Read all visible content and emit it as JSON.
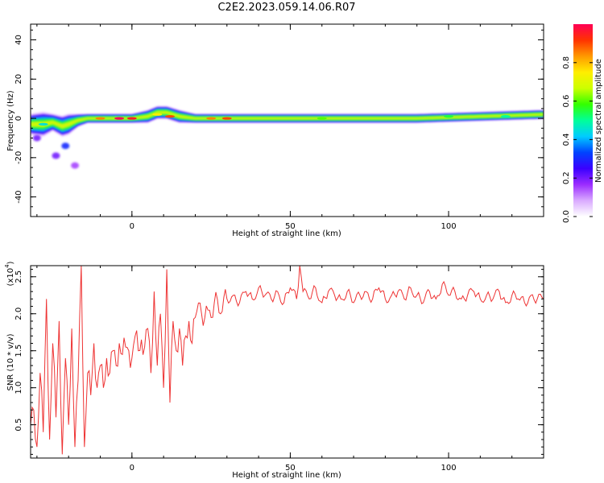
{
  "page": {
    "title": "C2E2.2023.059.14.06.R07"
  },
  "colors": {
    "snr_line": "#ee3333",
    "frame": "#000000",
    "background": "#ffffff"
  },
  "colorbar": {
    "label": "Normalized spectral amplitude",
    "ticks": [
      "0.0",
      "0.2",
      "0.4",
      "0.6",
      "0.8"
    ],
    "range": [
      0,
      1
    ],
    "colormap": [
      "#ffffff",
      "#d9aaff",
      "#9b2cff",
      "#3a00ff",
      "#0044ff",
      "#00ccff",
      "#00ff99",
      "#33ff00",
      "#ccff00",
      "#ffee00",
      "#ff9900",
      "#ff3300",
      "#ff0055"
    ]
  },
  "chart_data": [
    {
      "type": "heatmap",
      "title": "",
      "xlabel": "Height of straight line (km)",
      "ylabel": "Frequency (Hz)",
      "xlim": [
        -32,
        130
      ],
      "ylim": [
        -50,
        48
      ],
      "xticks": [
        "0",
        "50",
        "100"
      ],
      "yticks": [
        "-40",
        "-20",
        "0",
        "20",
        "40"
      ],
      "grid": false,
      "band": {
        "x": [
          -32,
          -28,
          -25,
          -22,
          -20,
          -17,
          -14,
          -10,
          -5,
          0,
          5,
          8,
          11,
          15,
          20,
          30,
          50,
          70,
          90,
          110,
          130
        ],
        "center_hz": [
          -3,
          -3,
          -2,
          -4,
          -3,
          -1,
          0,
          0,
          0,
          0,
          1,
          3,
          3,
          1,
          0,
          0,
          0,
          0,
          0,
          1,
          2
        ],
        "half_width_hz": [
          5,
          6,
          4,
          5,
          5,
          3,
          2,
          2,
          2,
          2,
          3,
          3,
          3,
          3,
          2,
          2,
          2,
          2,
          2,
          2,
          2
        ]
      },
      "scatter_blobs": [
        {
          "x": -21,
          "y": -14,
          "value": 0.3
        },
        {
          "x": -24,
          "y": -19,
          "value": 0.2
        },
        {
          "x": -18,
          "y": -24,
          "value": 0.15
        },
        {
          "x": -30,
          "y": -10,
          "value": 0.2
        }
      ],
      "peaks": [
        {
          "x": -28,
          "y": -3,
          "value": 0.45
        },
        {
          "x": -10,
          "y": 0,
          "value": 0.85
        },
        {
          "x": -4,
          "y": 0,
          "value": 1.0
        },
        {
          "x": 0,
          "y": 0,
          "value": 0.95
        },
        {
          "x": 8,
          "y": 2,
          "value": 0.75
        },
        {
          "x": 12,
          "y": 1,
          "value": 0.9
        },
        {
          "x": 25,
          "y": 0,
          "value": 0.85
        },
        {
          "x": 30,
          "y": 0,
          "value": 0.9
        },
        {
          "x": 60,
          "y": 0,
          "value": 0.6
        },
        {
          "x": 100,
          "y": 1,
          "value": 0.55
        },
        {
          "x": 118,
          "y": 1,
          "value": 0.5
        }
      ]
    },
    {
      "type": "line",
      "title": "",
      "xlabel": "Height of straight line (km)",
      "ylabel": "SNR (10 * v/v)",
      "y_multiplier_label": "(x10",
      "y_multiplier_exp": "4",
      "xlim": [
        -32,
        130
      ],
      "ylim": [
        0.05,
        2.65
      ],
      "xticks": [
        "0",
        "50",
        "100"
      ],
      "yticks": [
        "0.5",
        "1.0",
        "1.5",
        "2.0",
        "2.5"
      ],
      "grid": false,
      "x": [
        -32,
        -31,
        -30,
        -29,
        -28,
        -27,
        -26,
        -25,
        -24,
        -23,
        -22,
        -21,
        -20,
        -19,
        -18,
        -17,
        -16,
        -15,
        -14,
        -13,
        -12,
        -11,
        -10,
        -9,
        -8,
        -7,
        -6,
        -5,
        -4,
        -3,
        -2,
        -1,
        0,
        1,
        2,
        3,
        4,
        5,
        6,
        7,
        8,
        9,
        10,
        11,
        12,
        13,
        14,
        15,
        16,
        17,
        18,
        19,
        20,
        22,
        24,
        26,
        28,
        30,
        32,
        34,
        36,
        38,
        40,
        42,
        44,
        46,
        48,
        50,
        52,
        53,
        54,
        56,
        58,
        60,
        62,
        64,
        66,
        68,
        70,
        72,
        74,
        76,
        78,
        80,
        82,
        84,
        86,
        88,
        90,
        92,
        94,
        96,
        98,
        100,
        102,
        104,
        106,
        108,
        110,
        112,
        114,
        116,
        118,
        120,
        122,
        124,
        126,
        128,
        130
      ],
      "values": [
        0.5,
        0.7,
        0.2,
        1.2,
        0.4,
        2.2,
        0.3,
        1.6,
        0.6,
        1.9,
        0.1,
        1.4,
        0.5,
        1.8,
        0.2,
        1.1,
        2.65,
        0.2,
        1.2,
        0.9,
        1.6,
        1.0,
        1.3,
        1.0,
        1.4,
        1.2,
        1.5,
        1.3,
        1.6,
        1.45,
        1.55,
        1.5,
        1.4,
        1.7,
        1.5,
        1.65,
        1.55,
        1.8,
        1.2,
        2.3,
        1.3,
        2.0,
        1.0,
        2.6,
        0.8,
        1.9,
        1.5,
        1.8,
        1.3,
        1.7,
        1.9,
        1.6,
        1.95,
        2.0,
        2.05,
        2.15,
        2.0,
        2.2,
        2.25,
        2.15,
        2.3,
        2.2,
        2.35,
        2.25,
        2.2,
        2.3,
        2.15,
        2.35,
        2.2,
        2.65,
        2.3,
        2.2,
        2.35,
        2.15,
        2.3,
        2.25,
        2.2,
        2.3,
        2.15,
        2.25,
        2.3,
        2.2,
        2.35,
        2.2,
        2.25,
        2.3,
        2.2,
        2.35,
        2.25,
        2.15,
        2.3,
        2.2,
        2.4,
        2.25,
        2.3,
        2.2,
        2.25,
        2.3,
        2.2,
        2.25,
        2.2,
        2.3,
        2.15,
        2.25,
        2.2,
        2.15,
        2.25,
        2.2,
        2.2
      ]
    }
  ]
}
